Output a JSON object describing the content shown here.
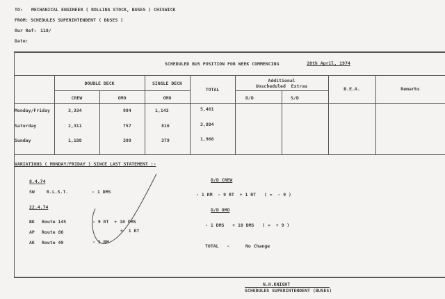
{
  "memo": {
    "to_label": "TO:",
    "to": "MECHANICAL ENGINEER ( ROLLING STOCK, BUSES )  CHISWICK",
    "from_label": "FROM:",
    "from": "SCHEDULES SUPERINTENDENT ( BUSES )",
    "ref_label": "Our Ref:",
    "ref": "110/",
    "date_label": "Date:"
  },
  "table": {
    "title": "SCHEDULED BUS POSITION FOR WEEK COMMENCING",
    "week": "20th April, 1974",
    "headers": {
      "double_deck": "DOUBLE    DECK",
      "single_deck": "SINGLE  DECK",
      "total": "TOTAL",
      "extras": "Additional\nUnscheduled  Extras",
      "bea": "B.E.A.",
      "remarks": "Remarks",
      "crew": "CREW",
      "ono1": "OMO",
      "ono2": "OMO",
      "do": "D/D",
      "sd": "S/D"
    },
    "rows": [
      {
        "day": "Monday/Friday",
        "crew": "3,334",
        "dd_omo": "984",
        "sd_omo": "1,143",
        "total": "5,461"
      },
      {
        "day": "Saturday",
        "crew": "2,311",
        "dd_omo": "757",
        "sd_omo": "816",
        "total": "3,884"
      },
      {
        "day": "Sunday",
        "crew": "1,188",
        "dd_omo": "399",
        "sd_omo": "379",
        "total": "1,966"
      }
    ]
  },
  "variations": {
    "heading": "VARIATIONS ( MONDAY/FRIDAY ) SINCE LAST STATEMENT :-",
    "date1": "8.4.74",
    "sw_code": "SW",
    "sw_name": "R.L.S.T.",
    "sw_change": "- 1 DMS",
    "date2": "22.4.74",
    "items": [
      {
        "code": "BK",
        "route": "Route 145",
        "change": "- 9 RT  + 10 DMS"
      },
      {
        "code": "AP",
        "route": "Route  86",
        "change": "+  1 RT"
      },
      {
        "code": "AK",
        "route": "Route  49",
        "change": "- 1 RM"
      }
    ],
    "dd_crew_label": "D/D CREW",
    "dd_crew": "- 1 RM  - 9 RT  + 1 RT   ( =  - 9 )",
    "dd_omo_label": "D/D OMO",
    "dd_omo": "- 1 DMS   + 10 DMS   ( =  + 9 )",
    "total_label": "TOTAL   -",
    "total": "No Change"
  },
  "signature": {
    "name": "N.H.KNIGHT",
    "title": "SCHEDULES SUPERINTENDENT (BUSES)"
  }
}
